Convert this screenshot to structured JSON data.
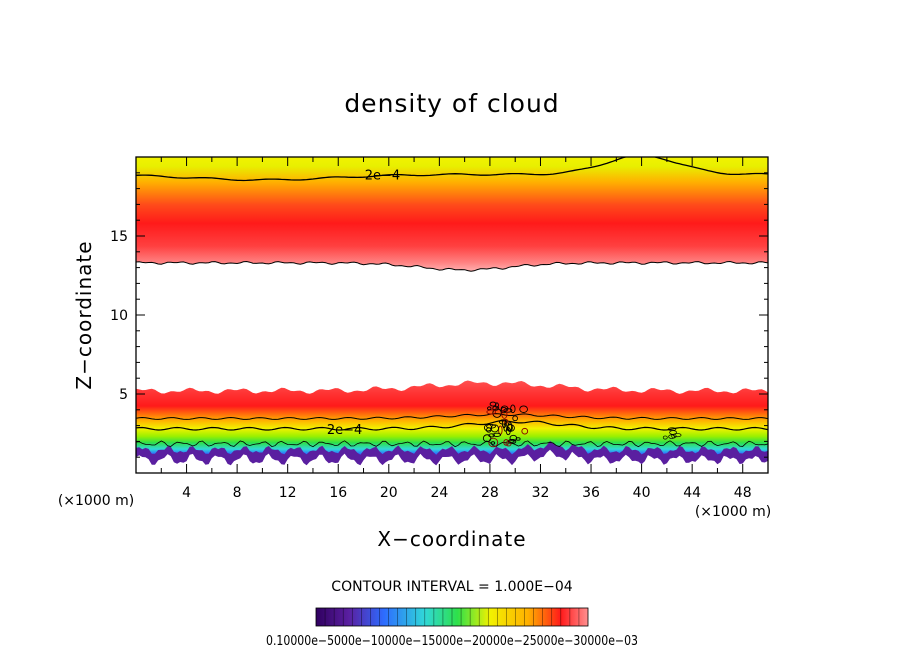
{
  "chart_data": {
    "type": "heatmap",
    "title": "density of cloud",
    "xlabel": "X−coordinate",
    "ylabel": "Z−coordinate",
    "x_unit_left": "(×1000 m)",
    "x_unit_right": "(×1000 m)",
    "xlim": [
      0,
      50
    ],
    "ylim": [
      0,
      20
    ],
    "x_ticks": [
      4,
      8,
      12,
      16,
      20,
      24,
      28,
      32,
      36,
      40,
      44,
      48
    ],
    "y_ticks": [
      5,
      10,
      15
    ],
    "x_tick_labels": [
      "4",
      "8",
      "12",
      "16",
      "20",
      "24",
      "28",
      "32",
      "36",
      "40",
      "44",
      "48"
    ],
    "y_tick_labels": [
      "5",
      "10",
      "15"
    ],
    "contour_interval_text": "CONTOUR INTERVAL = 1.000E−04",
    "contour_labels": [
      {
        "text": "2e−4",
        "x": 19.5,
        "z": 18.9
      },
      {
        "text": "2e−4",
        "x": 16.5,
        "z": 2.8
      }
    ],
    "layers": [
      {
        "name": "upper",
        "z_bottom": 13.2,
        "z_peak": 15.4,
        "z_top": 20,
        "peak_value": 0.00031
      },
      {
        "name": "lower",
        "z_bottom": 0.8,
        "z_peak": 4.5,
        "z_top": 5.5,
        "peak_value": 0.00031
      }
    ],
    "colorbar_tick_text": "0.10000e−5000e−10000e−15000e−20000e−25000e−30000e−03",
    "colorbar_range": [
      1e-07,
      0.0003
    ],
    "colors": {
      "low": "#5a1fa0",
      "mid_blue": "#2d6cff",
      "mid_green": "#2ee04a",
      "mid_yellow": "#f2f200",
      "high": "#ff1a1a",
      "contour": "#000000"
    }
  }
}
